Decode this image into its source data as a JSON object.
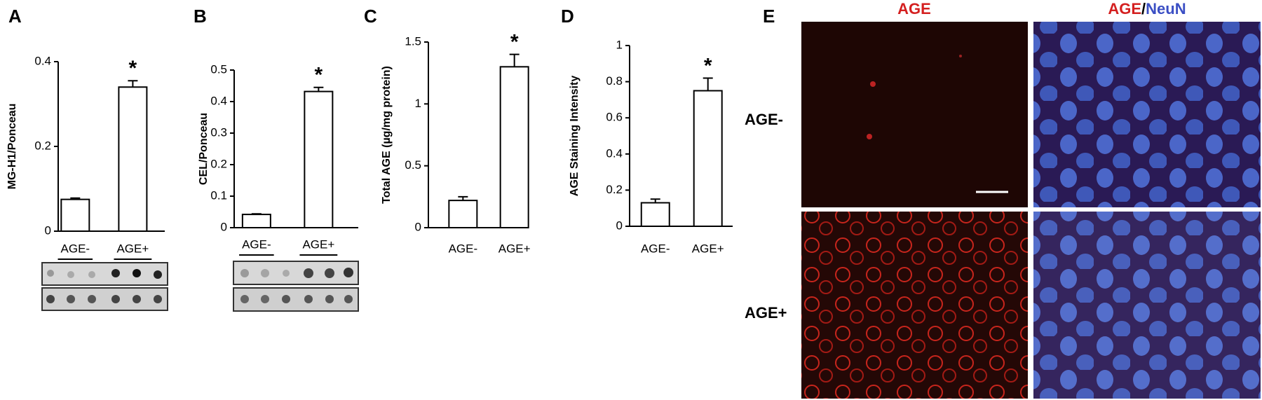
{
  "chart_data": [
    {
      "type": "bar",
      "panel": "A",
      "ylabel": "MG-H1/Ponceau",
      "categories": [
        "AGE-",
        "AGE+"
      ],
      "values": [
        0.075,
        0.34
      ],
      "errors": [
        0.003,
        0.015
      ],
      "color": "#ffffff",
      "annotation": "*",
      "ylim": [
        0,
        0.4
      ],
      "yticks": [
        0,
        0.2,
        0.4
      ]
    },
    {
      "type": "bar",
      "panel": "B",
      "ylabel": "CEL/Ponceau",
      "categories": [
        "AGE-",
        "AGE+"
      ],
      "values": [
        0.042,
        0.432
      ],
      "errors": [
        0.002,
        0.013
      ],
      "color": "#ffffff",
      "annotation": "*",
      "ylim": [
        0,
        0.5
      ],
      "yticks": [
        0,
        0.1,
        0.2,
        0.3,
        0.4,
        0.5
      ]
    },
    {
      "type": "bar",
      "panel": "C",
      "ylabel": "Total AGE (µg/mg protein)",
      "categories": [
        "AGE-",
        "AGE+"
      ],
      "values": [
        0.22,
        1.3
      ],
      "errors": [
        0.03,
        0.1
      ],
      "color": "#ffffff",
      "annotation": "*",
      "ylim": [
        0,
        1.5
      ],
      "yticks": [
        0,
        0.5,
        1,
        1.5
      ]
    },
    {
      "type": "bar",
      "panel": "D",
      "ylabel": "AGE Staining Intensity",
      "categories": [
        "AGE-",
        "AGE+"
      ],
      "values": [
        0.13,
        0.75
      ],
      "errors": [
        0.02,
        0.07
      ],
      "color": "#ffffff",
      "annotation": "*",
      "ylim": [
        0,
        1
      ],
      "yticks": [
        0,
        0.2,
        0.4,
        0.6,
        0.8,
        1
      ]
    }
  ],
  "panel_e": {
    "label": "E",
    "column_1": "AGE",
    "column_2": [
      "AGE",
      "/",
      "NeuN"
    ],
    "rows": [
      "AGE-",
      "AGE+"
    ]
  }
}
